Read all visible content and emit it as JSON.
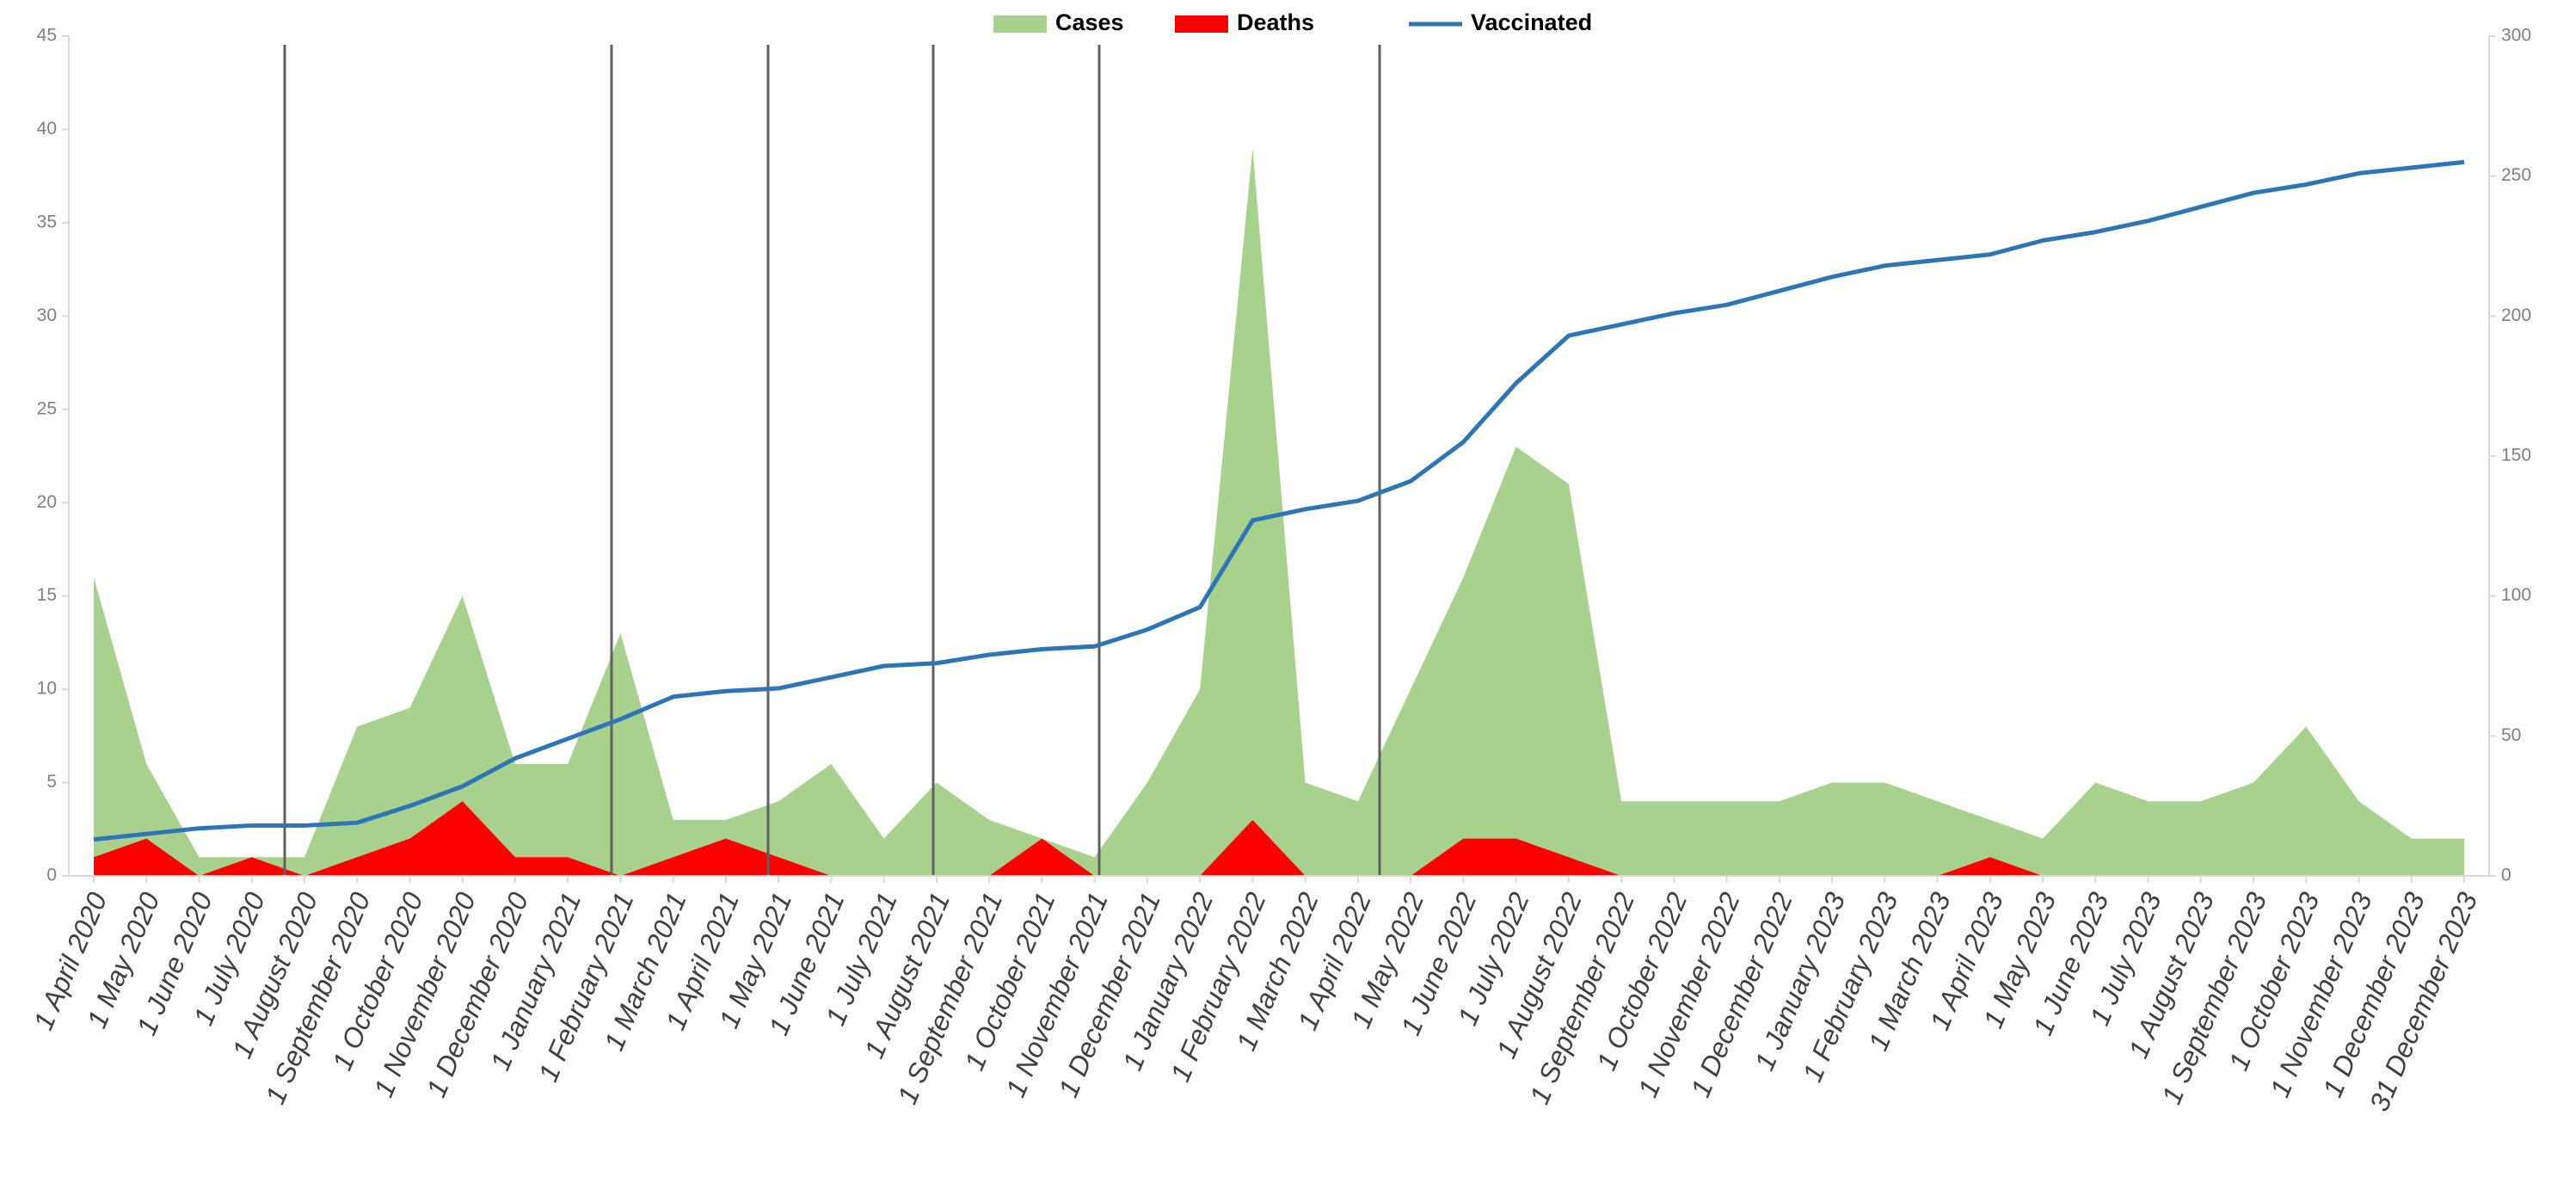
{
  "chart_data": {
    "type": "combo",
    "categories": [
      "1 April 2020",
      "1 May 2020",
      "1 June 2020",
      "1 July 2020",
      "1 August 2020",
      "1 September 2020",
      "1 October 2020",
      "1 November 2020",
      "1 December 2020",
      "1 January 2021",
      "1 February 2021",
      "1 March 2021",
      "1 April 2021",
      "1 May 2021",
      "1 June 2021",
      "1 July 2021",
      "1 August 2021",
      "1 September 2021",
      "1 October 2021",
      "1 November 2021",
      "1 December 2021",
      "1 January 2022",
      "1 February 2022",
      "1 March 2022",
      "1 April 2022",
      "1 May 2022",
      "1 June 2022",
      "1 July 2022",
      "1 August 2022",
      "1 September 2022",
      "1 October 2022",
      "1 November 2022",
      "1 December 2022",
      "1 January 2023",
      "1 February 2023",
      "1 March 2023",
      "1 April 2023",
      "1 May 2023",
      "1 June 2023",
      "1 July 2023",
      "1 August 2023",
      "1 September 2023",
      "1 October 2023",
      "1 November 2023",
      "1 December 2023",
      "31 December 2023"
    ],
    "series": [
      {
        "name": "Cases",
        "type": "area",
        "color": "#a9d18e",
        "values": [
          16,
          6,
          1,
          1,
          1,
          8,
          9,
          15,
          6,
          6,
          13,
          3,
          3,
          4,
          6,
          2,
          5,
          3,
          2,
          1,
          5,
          10,
          39,
          5,
          4,
          10,
          16,
          23,
          21,
          4,
          4,
          4,
          4,
          5,
          5,
          4,
          3,
          2,
          5,
          4,
          4,
          5,
          8,
          4,
          2,
          2
        ]
      },
      {
        "name": "Deaths",
        "type": "area",
        "color": "#ff0000",
        "values": [
          1,
          2,
          0,
          1,
          0,
          1,
          2,
          4,
          1,
          1,
          0,
          1,
          2,
          1,
          0,
          0,
          0,
          0,
          2,
          0,
          0,
          0,
          3,
          0,
          0,
          0,
          2,
          2,
          1,
          0,
          0,
          0,
          0,
          0,
          0,
          0,
          1,
          0,
          0,
          0,
          0,
          0,
          0,
          0,
          0,
          0
        ]
      },
      {
        "name": "Vaccinated",
        "type": "line",
        "axis": "y2",
        "color": "#2e75b6",
        "values": [
          13,
          15,
          17,
          18,
          18,
          19,
          25,
          32,
          42,
          49,
          56,
          64,
          66,
          67,
          71,
          75,
          76,
          79,
          81,
          82,
          88,
          96,
          127,
          131,
          134,
          141,
          155,
          176,
          193,
          197,
          201,
          204,
          209,
          214,
          218,
          220,
          222,
          227,
          230,
          234,
          239,
          244,
          247,
          251,
          253,
          255
        ]
      }
    ],
    "ylim": [
      0,
      45
    ],
    "yticks": [
      0,
      5,
      10,
      15,
      20,
      25,
      30,
      35,
      40,
      45
    ],
    "y2lim": [
      0,
      300
    ],
    "y2ticks": [
      0,
      50,
      100,
      150,
      200,
      250,
      300
    ],
    "grid": false,
    "legend": "top"
  }
}
